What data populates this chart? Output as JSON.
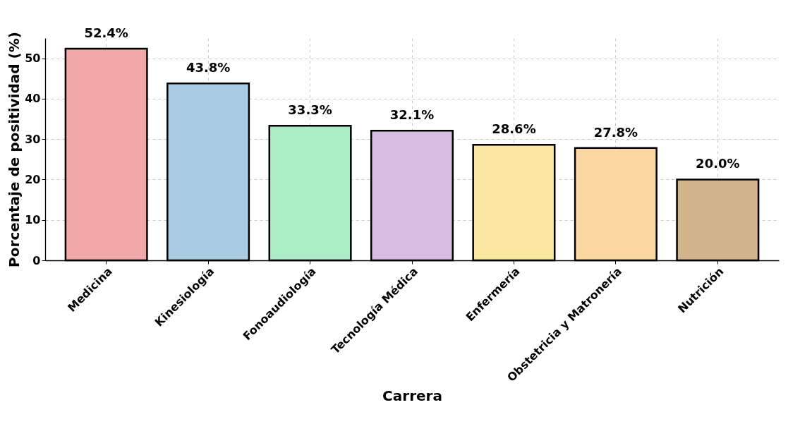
{
  "chart_data": {
    "type": "bar",
    "xlabel": "Carrera",
    "ylabel": "Porcentaje de positividad (%)",
    "categories": [
      "Medicina",
      "Kinesiología",
      "Fonoaudiología",
      "Tecnología Médica",
      "Enfermería",
      "Obstetricia y Matronería",
      "Nutrición"
    ],
    "values": [
      52.4,
      43.8,
      33.3,
      32.1,
      28.6,
      27.8,
      20.0
    ],
    "value_labels": [
      "52.4%",
      "43.8%",
      "33.3%",
      "32.1%",
      "28.6%",
      "27.8%",
      "20.0%"
    ],
    "colors": [
      "#f1a7a7",
      "#a9cce3",
      "#abebc6",
      "#d7bde2",
      "#f9e79f",
      "#fad7a0",
      "#d2b48c"
    ],
    "ylim": [
      0,
      55
    ],
    "yticks": [
      0,
      10,
      20,
      30,
      40,
      50
    ],
    "grid": true
  }
}
